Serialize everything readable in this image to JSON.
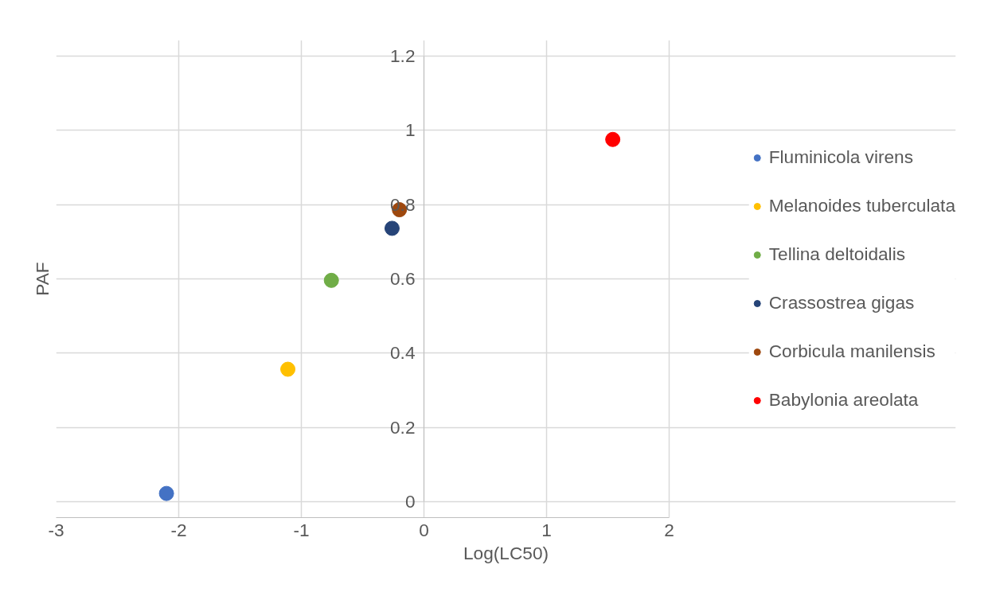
{
  "chart_data": {
    "type": "scatter",
    "xlabel": "Log(LC50)",
    "ylabel": "PAF",
    "xlim": [
      -3,
      2
    ],
    "xticks": [
      -3,
      -2,
      -1,
      0,
      1,
      2
    ],
    "ylim": [
      0,
      1.2
    ],
    "yticks": [
      0,
      0.2,
      0.4,
      0.6,
      0.8,
      1,
      1.2
    ],
    "grid": true,
    "legend": "right",
    "marker": "circle",
    "series": [
      {
        "name": "Fluminicola virens",
        "color": "#4472c4",
        "x": [
          -2.1
        ],
        "values": [
          0.023
        ]
      },
      {
        "name": "Melanoides tuberculata",
        "color": "#ffc000",
        "x": [
          -1.11
        ],
        "values": [
          0.357
        ]
      },
      {
        "name": "Tellina deltoidalis",
        "color": "#70ad47",
        "x": [
          -0.755
        ],
        "values": [
          0.596
        ]
      },
      {
        "name": "Crassostrea gigas",
        "color": "#264478",
        "x": [
          -0.26
        ],
        "values": [
          0.736
        ]
      },
      {
        "name": "Corbicula manilensis",
        "color": "#9e480e",
        "x": [
          -0.2
        ],
        "values": [
          0.786
        ]
      },
      {
        "name": "Babylonia areolata",
        "color": "#ff0000",
        "x": [
          1.54
        ],
        "values": [
          0.975
        ]
      }
    ]
  }
}
